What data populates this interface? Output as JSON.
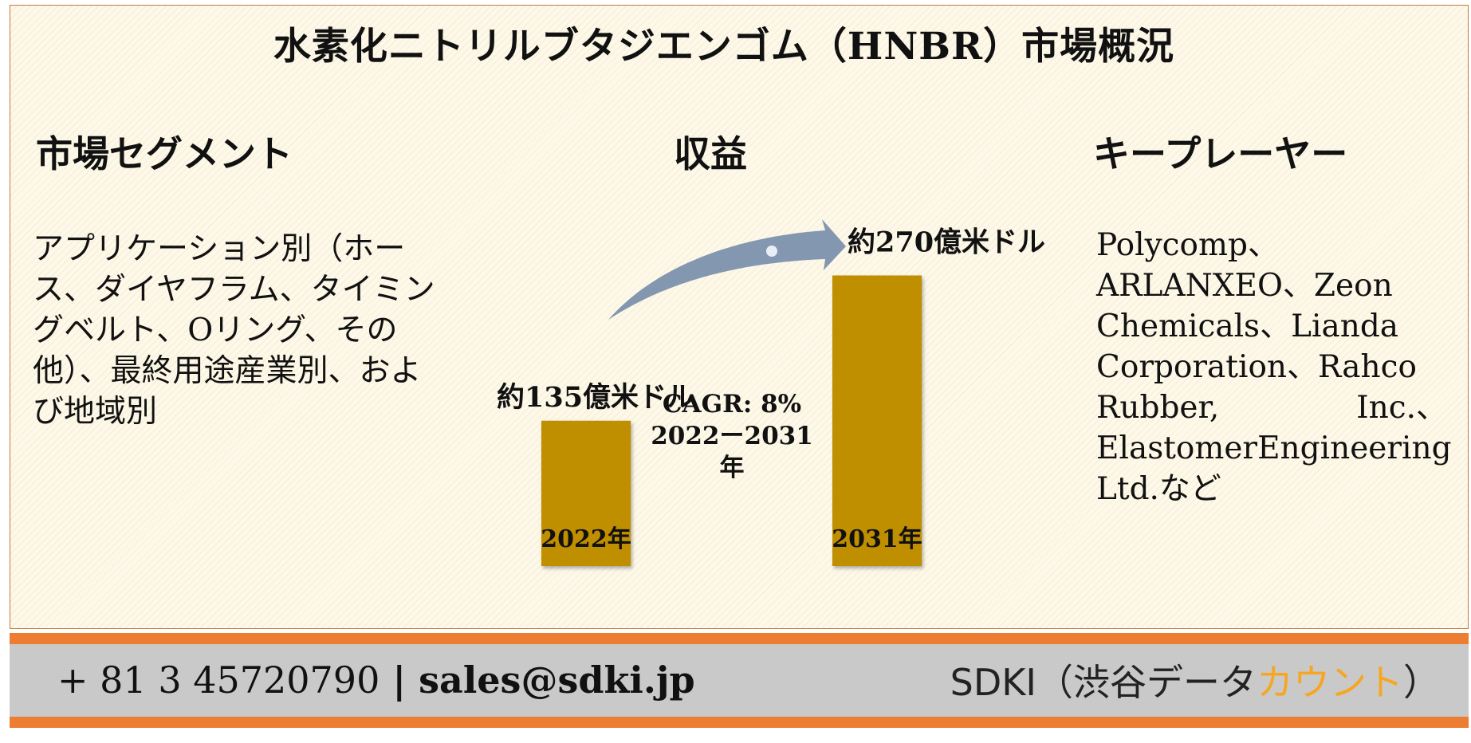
{
  "title": "水素化ニトリルブタジエンゴム（HNBR）市場概況",
  "segments": {
    "heading": "市場セグメント",
    "text": "アプリケーション別（ホース、ダイヤフラム、タイミングベルト、Oリング、その他）、最終用途産業別、および地域別"
  },
  "revenue": {
    "heading": "収益"
  },
  "key_players": {
    "heading": "キープレーヤー",
    "lines": [
      "Polycomp、",
      "ARLANXEO、Zeon",
      "Chemicals、Lianda",
      "Corporation、Rahco"
    ],
    "justified_lines": [
      [
        "Rubber,",
        "Inc.、"
      ],
      [
        "Elastomer",
        "Engineering"
      ]
    ],
    "last_line": "Ltd.など"
  },
  "chart_data": {
    "type": "bar",
    "categories": [
      "2022年",
      "2031年"
    ],
    "values": [
      135,
      270
    ],
    "value_labels": [
      "約135億米ドル",
      "約270億米ドル"
    ],
    "bar_color": "#bf8f00",
    "arrow_color": "#8497b0",
    "cagr_line1": "CAGR: 8%",
    "cagr_line2": "2022ー2031年"
  },
  "footer": {
    "phone": "+ 81 3 45720790",
    "separator": " | ",
    "email": "sales@sdki.jp",
    "brand_prefix": "SDKI（渋谷データ",
    "brand_accent": "カウント",
    "brand_suffix": "）",
    "accent_color": "#f6a623"
  }
}
